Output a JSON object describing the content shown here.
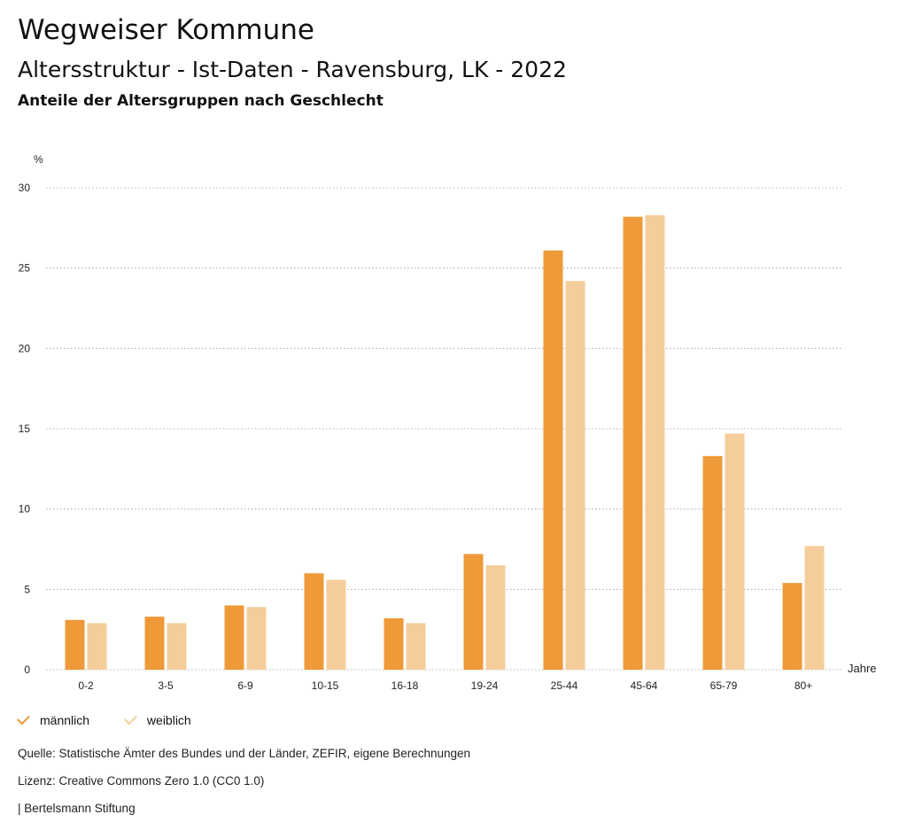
{
  "header": {
    "title": "Wegweiser Kommune",
    "subtitle": "Altersstruktur - Ist-Daten - Ravensburg, LK - 2022",
    "description": "Anteile der Altersgruppen nach Geschlecht"
  },
  "chart_data": {
    "type": "bar",
    "ylabel": "%",
    "xlabel": "Jahre",
    "ylim": [
      0,
      30
    ],
    "yticks": [
      0,
      5,
      10,
      15,
      20,
      25,
      30
    ],
    "grid": true,
    "legend": "bottom-left",
    "categories": [
      "0-2",
      "3-5",
      "6-9",
      "10-15",
      "16-18",
      "19-24",
      "25-44",
      "45-64",
      "65-79",
      "80+"
    ],
    "series": [
      {
        "name": "männlich",
        "color": "#ee9a38",
        "values": [
          3.1,
          3.3,
          4.0,
          6.0,
          3.2,
          7.2,
          26.1,
          28.2,
          13.3,
          5.4
        ]
      },
      {
        "name": "weiblich",
        "color": "#f5cd9b",
        "values": [
          2.9,
          2.9,
          3.9,
          5.6,
          2.9,
          6.5,
          24.2,
          28.3,
          14.7,
          7.7
        ]
      }
    ]
  },
  "footer": {
    "source": "Quelle: Statistische Ämter des Bundes und der Länder, ZEFIR, eigene Berechnungen",
    "license": "Lizenz: Creative Commons Zero 1.0 (CC0 1.0)",
    "publisher": "| Bertelsmann Stiftung"
  }
}
